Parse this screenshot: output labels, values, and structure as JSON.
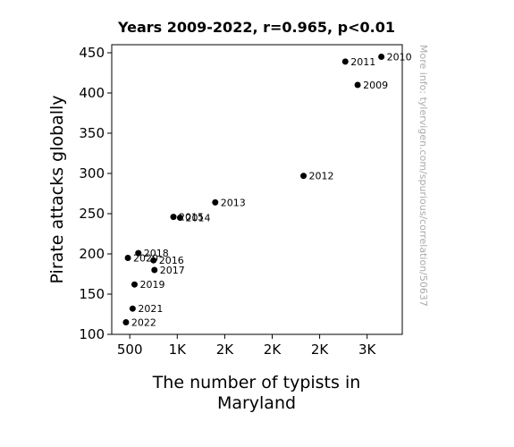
{
  "chart_data": {
    "type": "scatter",
    "title": "Years 2009-2022, r=0.965, p<0.01",
    "xlabel_lines": [
      "The number of typists in",
      "Maryland"
    ],
    "ylabel": "Pirate attacks globally",
    "watermark": "More info: tylervigen.com/spurious/correlation/50637",
    "xlim": [
      310,
      3370
    ],
    "ylim": [
      100,
      460
    ],
    "xticks": [
      {
        "value": 500,
        "label": "500"
      },
      {
        "value": 1000,
        "label": "1K"
      },
      {
        "value": 1500,
        "label": "2K"
      },
      {
        "value": 2000,
        "label": "2K"
      },
      {
        "value": 2500,
        "label": "2K"
      },
      {
        "value": 3000,
        "label": "3K"
      }
    ],
    "yticks": [
      100,
      150,
      200,
      250,
      300,
      350,
      400,
      450
    ],
    "point_color": "#000000",
    "points": [
      {
        "label": "2009",
        "x": 2900,
        "y": 410
      },
      {
        "label": "2010",
        "x": 3150,
        "y": 445
      },
      {
        "label": "2011",
        "x": 2770,
        "y": 439
      },
      {
        "label": "2012",
        "x": 2330,
        "y": 297
      },
      {
        "label": "2013",
        "x": 1400,
        "y": 264
      },
      {
        "label": "2014",
        "x": 1030,
        "y": 245
      },
      {
        "label": "2015",
        "x": 960,
        "y": 246
      },
      {
        "label": "2016",
        "x": 750,
        "y": 192
      },
      {
        "label": "2017",
        "x": 760,
        "y": 180
      },
      {
        "label": "2018",
        "x": 590,
        "y": 201
      },
      {
        "label": "2019",
        "x": 550,
        "y": 162
      },
      {
        "label": "2020",
        "x": 480,
        "y": 195
      },
      {
        "label": "2021",
        "x": 530,
        "y": 132
      },
      {
        "label": "2022",
        "x": 460,
        "y": 115
      }
    ]
  }
}
